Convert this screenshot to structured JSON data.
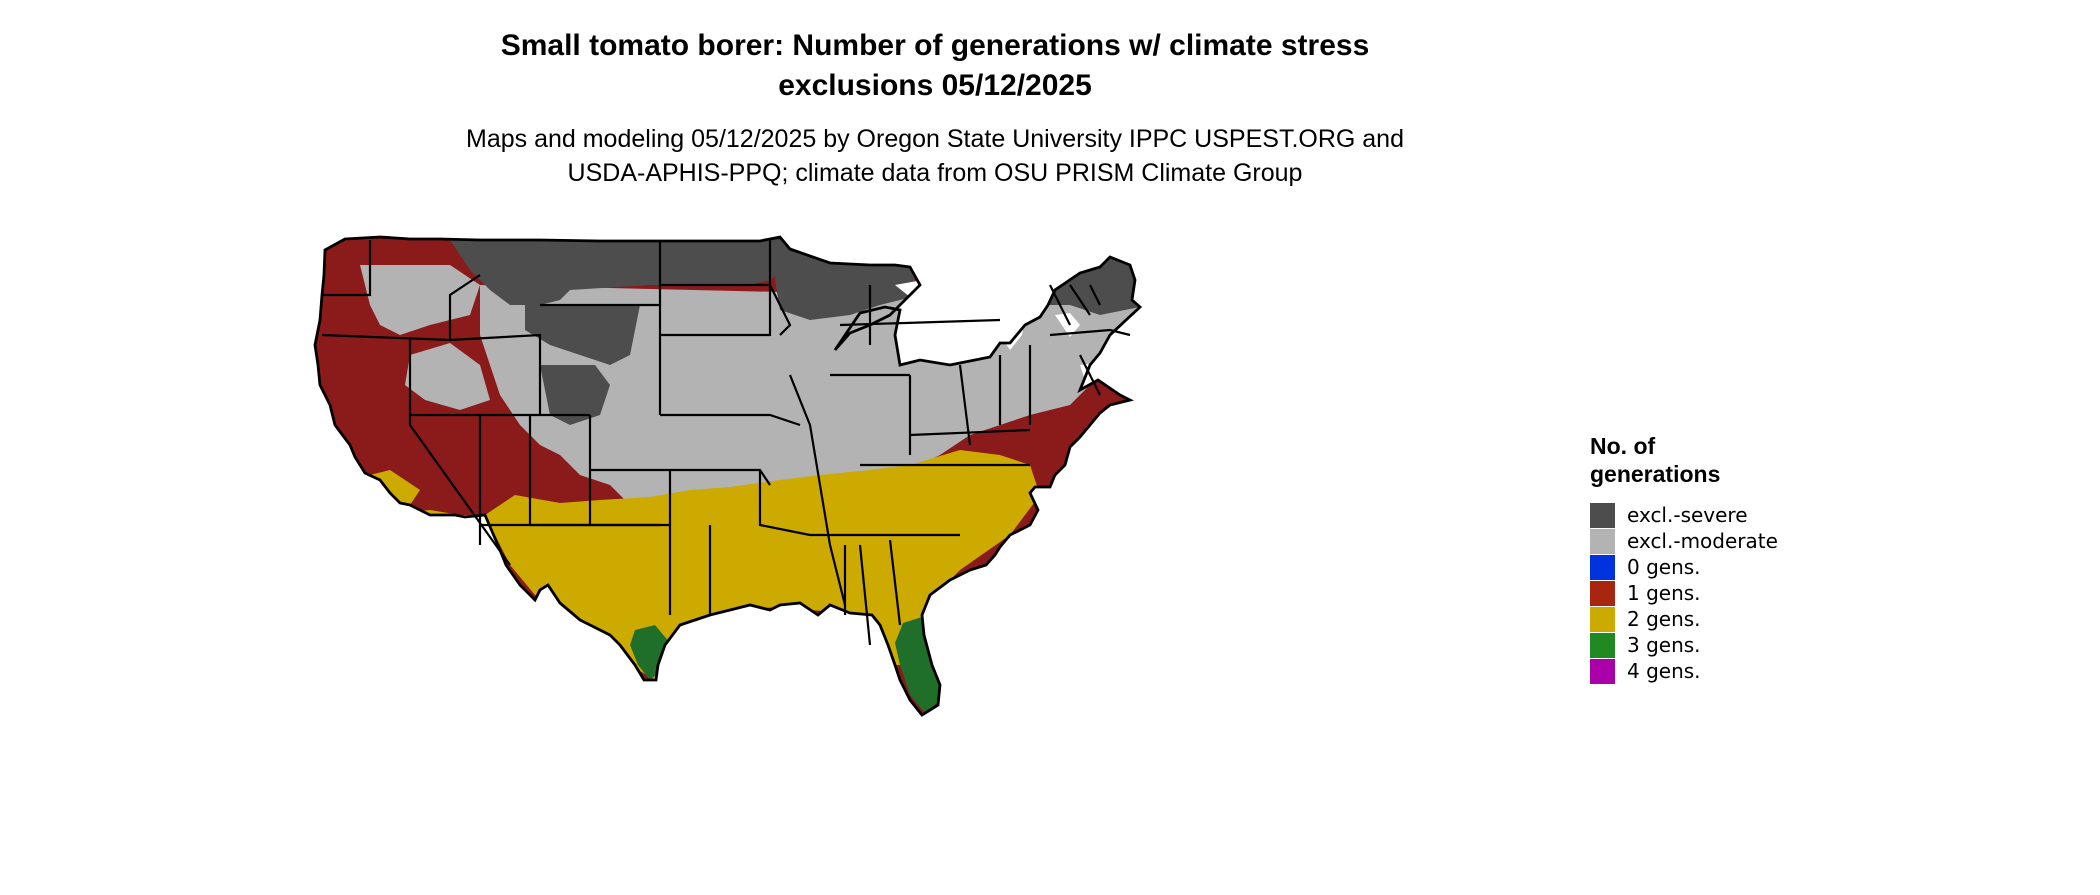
{
  "title_line1": "Small tomato borer: Number of generations w/ climate stress",
  "title_line2": "exclusions 05/12/2025",
  "subtitle_line1": "Maps and modeling 05/12/2025 by Oregon State University IPPC USPEST.ORG and",
  "subtitle_line2": "USDA-APHIS-PPQ; climate data from OSU PRISM Climate Group",
  "legend": {
    "title_line1": "No. of",
    "title_line2": "generations",
    "items": [
      {
        "label": "excl.-severe",
        "color": "#4d4d4d"
      },
      {
        "label": "excl.-moderate",
        "color": "#b3b3b3"
      },
      {
        "label": "0 gens.",
        "color": "#0033dd"
      },
      {
        "label": "1 gens.",
        "color": "#a8250f"
      },
      {
        "label": "2 gens.",
        "color": "#ccaa00"
      },
      {
        "label": "3 gens.",
        "color": "#228822"
      },
      {
        "label": "4 gens.",
        "color": "#aa00aa"
      }
    ]
  },
  "map_colors": {
    "excl_severe": "#4d4d4d",
    "excl_moderate": "#b3b3b3",
    "gens_1": "#8b1a1a",
    "gens_2": "#ccaa00",
    "gens_3": "#1f6f2a",
    "border": "#000000",
    "water": "#ffffff"
  }
}
